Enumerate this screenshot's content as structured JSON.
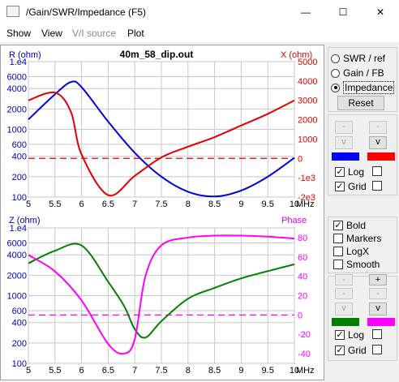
{
  "window": {
    "title": "/Gain/SWR/Impedance (F5)",
    "minimize_glyph": "—",
    "maximize_glyph": "☐",
    "close_glyph": "✕"
  },
  "menu": [
    {
      "label": "Show",
      "enabled": true
    },
    {
      "label": "View",
      "enabled": true
    },
    {
      "label": "V/I source",
      "enabled": false
    },
    {
      "label": "Plot",
      "enabled": true
    }
  ],
  "top_plot": {
    "title": "40m_58_dip.out",
    "left_axis_label": "R (ohm)",
    "right_axis_label": "X (ohm)",
    "left_ticks": [
      "1.e4",
      "6000",
      "4000",
      "2000",
      "1000",
      "600",
      "400",
      "200",
      "100"
    ],
    "right_ticks": [
      "5000",
      "4000",
      "3000",
      "2000",
      "1000",
      "0",
      "-1e3",
      "-2e3"
    ],
    "x_ticks": [
      "5",
      "5.5",
      "6",
      "6.5",
      "7",
      "7.5",
      "8",
      "8.5",
      "9",
      "9.5",
      "10"
    ],
    "x_unit": "MHz"
  },
  "bottom_plot": {
    "left_axis_label": "Z (ohm)",
    "right_axis_label": "Phase",
    "left_ticks": [
      "1.e4",
      "6000",
      "4000",
      "2000",
      "1000",
      "600",
      "400",
      "200",
      "100"
    ],
    "right_ticks": [
      "80",
      "60",
      "40",
      "20",
      "0",
      "-20",
      "-40"
    ],
    "x_ticks": [
      "5",
      "5.5",
      "6",
      "6.5",
      "7",
      "7.5",
      "8",
      "8.5",
      "9",
      "9.5",
      "10"
    ],
    "x_unit": "MHz"
  },
  "chart_data": [
    {
      "type": "line",
      "title": "40m_58_dip.out",
      "xlabel": "MHz",
      "ylabel": "R (ohm)",
      "y2label": "X (ohm)",
      "xlim": [
        5,
        10
      ],
      "ylim": [
        100,
        10000
      ],
      "ylog": true,
      "y2lim": [
        -2000,
        5000
      ],
      "x": [
        5,
        5.5,
        5.8,
        6,
        6.5,
        7,
        7.5,
        8,
        8.5,
        9,
        9.5,
        10
      ],
      "series": [
        {
          "name": "R (ohm)",
          "color": "#0000e0",
          "axis": "left",
          "values": [
            1400,
            3300,
            5000,
            4200,
            1300,
            450,
            200,
            120,
            102,
            125,
            200,
            380
          ]
        },
        {
          "name": "X (ohm)",
          "color": "#e00000",
          "axis": "right",
          "values": [
            3000,
            3400,
            2400,
            200,
            -1900,
            -900,
            50,
            600,
            1100,
            1700,
            2300,
            3000
          ]
        }
      ],
      "reference_line": {
        "axis": "right",
        "value": 0,
        "color": "#e00000",
        "style": "dashed"
      }
    },
    {
      "type": "line",
      "xlabel": "MHz",
      "ylabel": "Z (ohm)",
      "y2label": "Phase",
      "xlim": [
        5,
        10
      ],
      "ylim": [
        100,
        10000
      ],
      "ylog": true,
      "y2lim": [
        -50,
        90
      ],
      "x": [
        5,
        5.5,
        6,
        6.5,
        6.8,
        7,
        7.2,
        7.5,
        8,
        8.5,
        9,
        9.5,
        10
      ],
      "series": [
        {
          "name": "Z (ohm)",
          "color": "#008000",
          "axis": "left",
          "values": [
            3000,
            4600,
            5500,
            1600,
            700,
            320,
            240,
            420,
            900,
            1300,
            1800,
            2300,
            2900
          ]
        },
        {
          "name": "Phase",
          "color": "#ff00ff",
          "axis": "right",
          "values": [
            62,
            45,
            15,
            -30,
            -40,
            -25,
            40,
            72,
            80,
            82,
            82,
            81,
            79
          ]
        }
      ],
      "reference_line": {
        "axis": "right",
        "value": 0,
        "color": "#ff00ff",
        "style": "dashed"
      }
    }
  ],
  "side_panel": {
    "modes": [
      {
        "label": "SWR / ref",
        "selected": false
      },
      {
        "label": "Gain / FB",
        "selected": false
      },
      {
        "label": "Impedance",
        "selected": true
      }
    ],
    "reset_label": "Reset",
    "top_controls": {
      "minus_label": "-",
      "plus_label": "-",
      "down_label": "v",
      "up_label": "v",
      "left_swatch": "#0000ff",
      "right_swatch": "#ff0000",
      "log_label": "Log",
      "log_checked": true,
      "grid_label": "Grid",
      "grid_checked": true
    },
    "options": [
      {
        "label": "Bold",
        "checked": true
      },
      {
        "label": "Markers",
        "checked": false
      },
      {
        "label": "LogX",
        "checked": false
      },
      {
        "label": "Smooth",
        "checked": false
      }
    ],
    "bottom_controls": {
      "minus_label": "-",
      "plus_label": "+",
      "down_label": "v",
      "up_label": "v",
      "left_swatch": "#008000",
      "right_swatch": "#ff00ff",
      "log_label": "Log",
      "log_checked": true,
      "grid_label": "Grid",
      "grid_checked": true
    }
  }
}
